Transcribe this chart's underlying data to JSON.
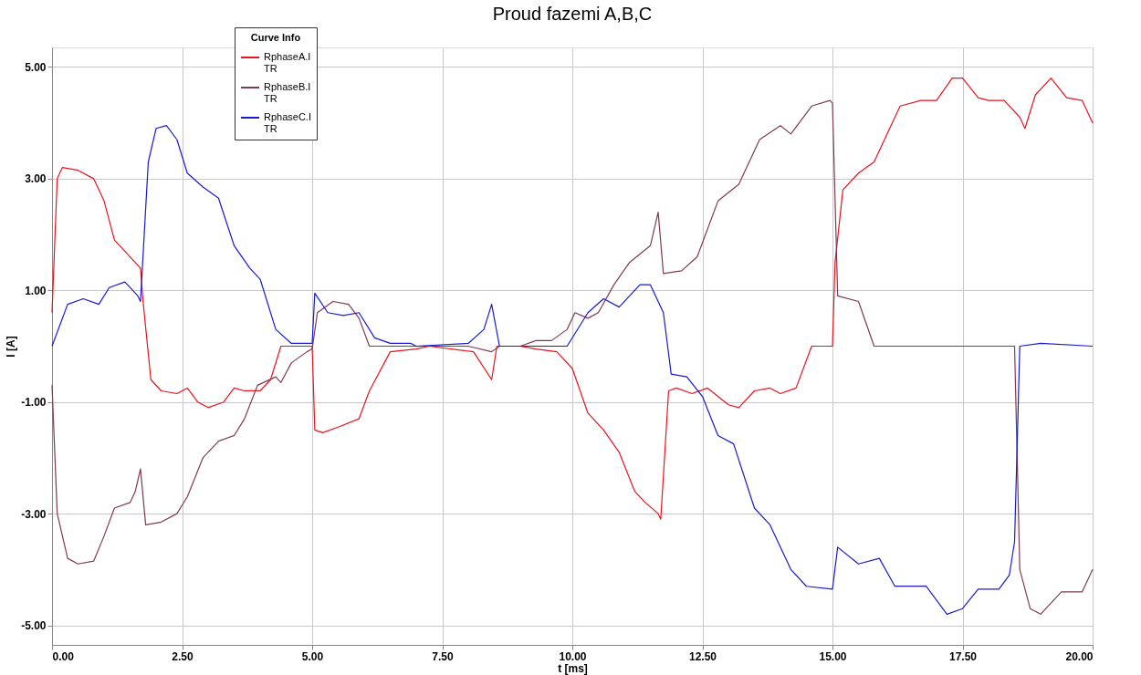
{
  "chart_data": {
    "type": "line",
    "title": "Proud fazemi A,B,C",
    "xlabel": "t [ms]",
    "ylabel": "I [A]",
    "legend_title": "Curve Info",
    "xlim": [
      0,
      20
    ],
    "xticks": [
      {
        "value": 0,
        "label": "0.00"
      },
      {
        "value": 2.5,
        "label": "2.50"
      },
      {
        "value": 5,
        "label": "5.00"
      },
      {
        "value": 7.5,
        "label": "7.50"
      },
      {
        "value": 10,
        "label": "10.00"
      },
      {
        "value": 12.5,
        "label": "12.50"
      },
      {
        "value": 15,
        "label": "15.00"
      },
      {
        "value": 17.5,
        "label": "17.50"
      },
      {
        "value": 20,
        "label": "20.00"
      }
    ],
    "ylim": [
      -5.35,
      5.35
    ],
    "yticks": [
      {
        "value": -5,
        "label": "-5.00"
      },
      {
        "value": -3,
        "label": "-3.00"
      },
      {
        "value": -1,
        "label": "-1.00"
      },
      {
        "value": 1,
        "label": "1.00"
      },
      {
        "value": 3,
        "label": "3.00"
      },
      {
        "value": 5,
        "label": "5.00"
      }
    ],
    "grid": true,
    "legend": "top left",
    "marker": "none",
    "line_style": "solid",
    "series": [
      {
        "name": "RphaseA.I TR",
        "color": "#e8141e",
        "x": [
          0,
          0.1,
          0.2,
          0.5,
          0.8,
          1.0,
          1.2,
          1.5,
          1.7,
          1.75,
          1.9,
          2.1,
          2.4,
          2.6,
          2.8,
          3.0,
          3.3,
          3.5,
          3.7,
          4.0,
          4.2,
          4.4,
          5.0,
          5.05,
          5.2,
          5.5,
          5.9,
          6.1,
          6.5,
          7.0,
          7.25,
          8.1,
          8.45,
          8.55,
          9.0,
          9.3,
          9.7,
          10.0,
          10.3,
          10.6,
          10.9,
          11.2,
          11.4,
          11.65,
          11.7,
          11.85,
          12.0,
          12.3,
          12.6,
          13.0,
          13.2,
          13.5,
          13.8,
          14.0,
          14.3,
          14.6,
          15.0,
          15.05,
          15.2,
          15.5,
          15.8,
          16.0,
          16.3,
          16.7,
          17.0,
          17.3,
          17.5,
          17.8,
          18.0,
          18.3,
          18.6,
          18.7,
          18.9,
          19.2,
          19.5,
          19.8,
          20.0
        ],
        "values": [
          0.6,
          3.0,
          3.2,
          3.15,
          3.0,
          2.6,
          1.9,
          1.6,
          1.4,
          0.8,
          -0.6,
          -0.8,
          -0.85,
          -0.75,
          -1.0,
          -1.1,
          -1.0,
          -0.75,
          -0.8,
          -0.8,
          -0.6,
          0,
          0,
          -1.5,
          -1.55,
          -1.45,
          -1.3,
          -0.8,
          -0.1,
          -0.05,
          0,
          -0.1,
          -0.6,
          0,
          0,
          -0.05,
          -0.1,
          -0.4,
          -1.2,
          -1.5,
          -1.9,
          -2.6,
          -2.8,
          -3.0,
          -3.1,
          -0.8,
          -0.75,
          -0.85,
          -0.75,
          -1.05,
          -1.1,
          -0.8,
          -0.75,
          -0.85,
          -0.75,
          0,
          0,
          1.5,
          2.8,
          3.1,
          3.3,
          3.7,
          4.3,
          4.4,
          4.4,
          4.8,
          4.8,
          4.45,
          4.4,
          4.4,
          4.1,
          3.9,
          4.5,
          4.8,
          4.45,
          4.4,
          4.0
        ]
      },
      {
        "name": "RphaseB.I TR",
        "color": "#7f3a55",
        "x": [
          0,
          0.1,
          0.3,
          0.5,
          0.8,
          1.0,
          1.2,
          1.5,
          1.6,
          1.7,
          1.8,
          2.1,
          2.4,
          2.6,
          2.9,
          3.2,
          3.5,
          3.7,
          3.95,
          4.3,
          4.4,
          4.6,
          4.9,
          5.0,
          5.1,
          5.4,
          5.7,
          5.9,
          6.1,
          7.0,
          8.0,
          8.45,
          8.6,
          9.0,
          9.3,
          9.6,
          9.9,
          10.05,
          10.3,
          10.5,
          10.8,
          11.1,
          11.5,
          11.65,
          11.75,
          12.1,
          12.4,
          12.8,
          13.2,
          13.6,
          14.0,
          14.2,
          14.6,
          14.95,
          15.0,
          15.1,
          15.5,
          15.8,
          17.0,
          18.5,
          18.6,
          18.8,
          19.0,
          19.4,
          19.8,
          20.0
        ],
        "values": [
          -0.7,
          -3.0,
          -3.8,
          -3.9,
          -3.85,
          -3.4,
          -2.9,
          -2.8,
          -2.6,
          -2.2,
          -3.2,
          -3.15,
          -3.0,
          -2.7,
          -2.0,
          -1.7,
          -1.6,
          -1.3,
          -0.7,
          -0.55,
          -0.65,
          -0.3,
          -0.1,
          -0.05,
          0.6,
          0.8,
          0.75,
          0.5,
          0,
          0,
          0,
          -0.1,
          0,
          0,
          0.1,
          0.1,
          0.3,
          0.6,
          0.5,
          0.6,
          1.1,
          1.5,
          1.8,
          2.4,
          1.3,
          1.35,
          1.6,
          2.6,
          2.9,
          3.7,
          3.95,
          3.8,
          4.3,
          4.4,
          4.35,
          0.9,
          0.8,
          0,
          0,
          0,
          -4.0,
          -4.7,
          -4.8,
          -4.4,
          -4.4,
          -4.0
        ]
      },
      {
        "name": "RphaseC.I TR",
        "color": "#1a1ad0",
        "x": [
          0,
          0.3,
          0.6,
          0.9,
          1.1,
          1.4,
          1.65,
          1.7,
          1.85,
          2.0,
          2.2,
          2.4,
          2.6,
          2.9,
          3.2,
          3.5,
          3.8,
          4.0,
          4.3,
          4.6,
          5.0,
          5.05,
          5.3,
          5.6,
          5.9,
          6.2,
          6.5,
          6.9,
          7.0,
          8.0,
          8.3,
          8.45,
          8.6,
          9.0,
          9.9,
          10.3,
          10.6,
          10.9,
          11.3,
          11.5,
          11.75,
          11.9,
          12.2,
          12.5,
          12.8,
          13.1,
          13.5,
          13.8,
          14.2,
          14.5,
          15.0,
          15.1,
          15.5,
          15.9,
          16.2,
          16.8,
          17.2,
          17.5,
          17.8,
          18.2,
          18.4,
          18.5,
          18.6,
          19.0,
          20.0
        ],
        "values": [
          0,
          0.75,
          0.85,
          0.75,
          1.05,
          1.15,
          0.9,
          0.8,
          3.3,
          3.9,
          3.95,
          3.7,
          3.1,
          2.85,
          2.65,
          1.8,
          1.4,
          1.2,
          0.3,
          0.05,
          0.05,
          0.95,
          0.6,
          0.55,
          0.6,
          0.15,
          0.05,
          0.05,
          0,
          0.05,
          0.3,
          0.75,
          0,
          0,
          0,
          0.6,
          0.85,
          0.7,
          1.1,
          1.1,
          0.6,
          -0.5,
          -0.55,
          -0.9,
          -1.6,
          -1.75,
          -2.9,
          -3.2,
          -4.0,
          -4.3,
          -4.35,
          -3.6,
          -3.9,
          -3.8,
          -4.3,
          -4.3,
          -4.8,
          -4.7,
          -4.35,
          -4.35,
          -4.1,
          -3.5,
          0,
          0.05,
          0
        ]
      }
    ]
  }
}
